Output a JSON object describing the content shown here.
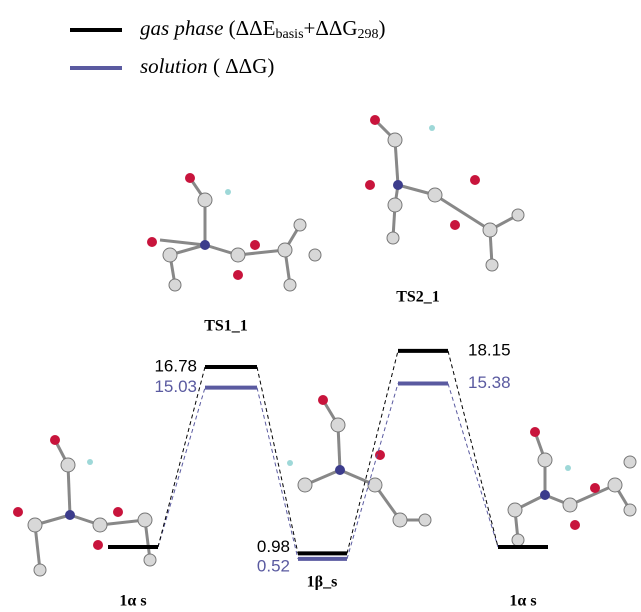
{
  "legend": [
    {
      "name": "gas phase",
      "parts": [
        "(ΔΔE",
        "basis",
        "+ΔΔG",
        "298",
        ")"
      ]
    },
    {
      "name": "solution",
      "parts": [
        "( ΔΔG)"
      ]
    }
  ],
  "states": [
    {
      "label": "1α s"
    },
    {
      "label": "TS1_1",
      "gas": 16.78,
      "solution": 15.03
    },
    {
      "label": "1β_s",
      "gas": 0.98,
      "solution": 0.52
    },
    {
      "label": "TS2_1",
      "gas": 18.15,
      "solution": 15.38
    },
    {
      "label": "1α s"
    }
  ]
}
